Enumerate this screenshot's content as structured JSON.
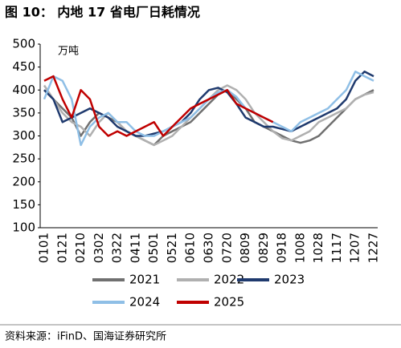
{
  "chart_data": {
    "type": "line",
    "title": "图 10：  内地 17 省电厂日耗情况",
    "y_label": "万吨",
    "source": "资料来源：iFinD、国海证券研究所",
    "categories": [
      "0101",
      null,
      "0121",
      null,
      "0210",
      null,
      "0302",
      null,
      "0322",
      null,
      "0411",
      null,
      "0501",
      null,
      "0521",
      null,
      "0610",
      null,
      "0630",
      null,
      "0720",
      null,
      "0809",
      null,
      "0829",
      null,
      "0918",
      null,
      "1008",
      null,
      "1028",
      null,
      "1117",
      null,
      "1207",
      null,
      "1227"
    ],
    "ylim": [
      100,
      500
    ],
    "yticks": [
      100,
      150,
      200,
      250,
      300,
      350,
      400,
      450,
      500
    ],
    "grid": false,
    "series": [
      {
        "name": "2021",
        "color": "#707070",
        "values": [
          400,
          380,
          360,
          340,
          300,
          330,
          350,
          340,
          330,
          310,
          300,
          290,
          280,
          300,
          310,
          320,
          330,
          350,
          370,
          390,
          400,
          380,
          360,
          330,
          320,
          310,
          300,
          290,
          285,
          290,
          300,
          320,
          340,
          360,
          380,
          390,
          400
        ]
      },
      {
        "name": "2022",
        "color": "#b0b0b0",
        "values": [
          410,
          380,
          350,
          330,
          320,
          300,
          330,
          350,
          330,
          310,
          300,
          290,
          280,
          290,
          300,
          320,
          340,
          360,
          380,
          400,
          410,
          400,
          380,
          350,
          330,
          310,
          295,
          290,
          300,
          310,
          330,
          340,
          350,
          360,
          380,
          390,
          395
        ]
      },
      {
        "name": "2023",
        "color": "#1f3a6e",
        "values": [
          400,
          380,
          330,
          340,
          350,
          360,
          350,
          340,
          320,
          310,
          300,
          300,
          305,
          310,
          320,
          330,
          350,
          380,
          400,
          405,
          395,
          370,
          340,
          330,
          320,
          320,
          315,
          310,
          320,
          330,
          340,
          350,
          360,
          380,
          420,
          440,
          430
        ]
      },
      {
        "name": "2024",
        "color": "#8fbfe6",
        "values": [
          380,
          430,
          420,
          380,
          280,
          320,
          340,
          350,
          330,
          330,
          310,
          300,
          300,
          310,
          320,
          330,
          340,
          360,
          380,
          395,
          400,
          385,
          360,
          350,
          340,
          330,
          320,
          310,
          330,
          340,
          350,
          360,
          380,
          400,
          440,
          430,
          420
        ]
      },
      {
        "name": "2025",
        "color": "#c00000",
        "values": [
          420,
          430,
          380,
          340,
          400,
          380,
          320,
          300,
          310,
          300,
          310,
          320,
          330,
          300,
          320,
          340,
          360,
          370,
          380,
          390,
          400,
          370,
          360,
          350,
          340,
          330,
          null,
          null,
          null,
          null,
          null,
          null,
          null,
          null,
          null,
          null,
          null
        ]
      }
    ]
  }
}
